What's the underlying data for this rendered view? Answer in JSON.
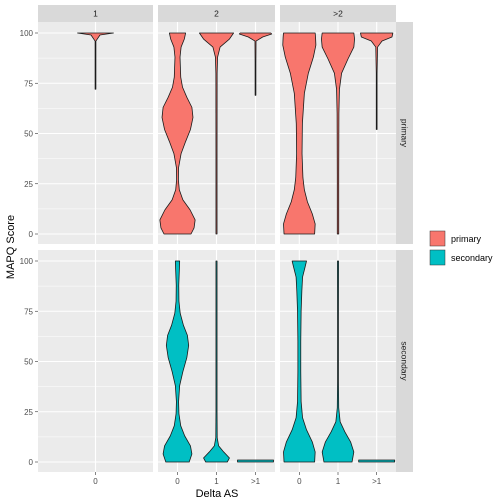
{
  "chart_data": {
    "type": "violin",
    "xlabel": "Delta AS",
    "ylabel": "MAPQ Score",
    "ylim": [
      0,
      100
    ],
    "yticks": [
      0,
      25,
      50,
      75,
      100
    ],
    "col_facets": [
      "1",
      "2",
      ">2"
    ],
    "row_facets": [
      "primary",
      "secondary"
    ],
    "x_categories": {
      "1": [
        "0"
      ],
      "2": [
        "0",
        "1",
        ">1"
      ],
      ">2": [
        "0",
        "1",
        ">1"
      ]
    },
    "legend": {
      "entries": [
        {
          "label": "primary",
          "color": "#F8766D"
        },
        {
          "label": "secondary",
          "color": "#00BFC4"
        }
      ],
      "placement": "right"
    },
    "colors": {
      "primary": "#F8766D",
      "secondary": "#00BFC4",
      "panel_bg": "#EBEBEB",
      "strip_bg": "#D9D9D9",
      "grid": "#FFFFFF"
    },
    "violins": [
      {
        "col": "1",
        "row": "primary",
        "x": "0",
        "group": "primary",
        "min": 72,
        "max": 100,
        "density": [
          [
            72,
            0.004
          ],
          [
            85,
            0.004
          ],
          [
            96,
            0.006
          ],
          [
            99,
            0.25
          ],
          [
            100,
            1.0
          ]
        ]
      },
      {
        "col": "2",
        "row": "primary",
        "x": "0",
        "group": "primary",
        "min": 0,
        "max": 100,
        "density": [
          [
            0,
            0.75
          ],
          [
            3,
            0.92
          ],
          [
            7,
            0.98
          ],
          [
            12,
            0.7
          ],
          [
            17,
            0.3
          ],
          [
            22,
            0.1
          ],
          [
            27,
            0.05
          ],
          [
            33,
            0.06
          ],
          [
            40,
            0.2
          ],
          [
            46,
            0.45
          ],
          [
            52,
            0.72
          ],
          [
            58,
            0.86
          ],
          [
            63,
            0.8
          ],
          [
            68,
            0.52
          ],
          [
            73,
            0.28
          ],
          [
            78,
            0.18
          ],
          [
            83,
            0.16
          ],
          [
            88,
            0.14
          ],
          [
            93,
            0.2
          ],
          [
            97,
            0.38
          ],
          [
            100,
            0.45
          ]
        ]
      },
      {
        "col": "2",
        "row": "primary",
        "x": "1",
        "group": "primary",
        "min": 0,
        "max": 100,
        "density": [
          [
            0,
            0.03
          ],
          [
            40,
            0.03
          ],
          [
            80,
            0.035
          ],
          [
            88,
            0.06
          ],
          [
            93,
            0.2
          ],
          [
            97,
            0.72
          ],
          [
            100,
            0.95
          ]
        ]
      },
      {
        "col": "2",
        "row": "primary",
        "x": ">1",
        "group": "primary",
        "min": 69,
        "max": 100,
        "density": [
          [
            69,
            0.015
          ],
          [
            85,
            0.015
          ],
          [
            96,
            0.03
          ],
          [
            98,
            0.4
          ],
          [
            99.5,
            0.9
          ],
          [
            100,
            0.85
          ]
        ]
      },
      {
        "col": ">2",
        "row": "primary",
        "x": "0",
        "group": "primary",
        "min": 0,
        "max": 100,
        "density": [
          [
            0,
            0.85
          ],
          [
            5,
            0.88
          ],
          [
            10,
            0.72
          ],
          [
            16,
            0.45
          ],
          [
            22,
            0.28
          ],
          [
            28,
            0.2
          ],
          [
            40,
            0.15
          ],
          [
            55,
            0.17
          ],
          [
            70,
            0.28
          ],
          [
            80,
            0.5
          ],
          [
            88,
            0.78
          ],
          [
            94,
            0.92
          ],
          [
            98,
            0.9
          ],
          [
            100,
            0.88
          ]
        ]
      },
      {
        "col": ">2",
        "row": "primary",
        "x": "1",
        "group": "primary",
        "min": 0,
        "max": 100,
        "density": [
          [
            0,
            0.04
          ],
          [
            30,
            0.04
          ],
          [
            60,
            0.05
          ],
          [
            72,
            0.08
          ],
          [
            80,
            0.2
          ],
          [
            87,
            0.55
          ],
          [
            93,
            0.88
          ],
          [
            97,
            0.92
          ],
          [
            100,
            0.88
          ]
        ]
      },
      {
        "col": ">2",
        "row": "primary",
        "x": ">1",
        "group": "primary",
        "min": 52,
        "max": 100,
        "density": [
          [
            52,
            0.015
          ],
          [
            80,
            0.02
          ],
          [
            93,
            0.05
          ],
          [
            96,
            0.3
          ],
          [
            98,
            0.85
          ],
          [
            100,
            0.9
          ]
        ]
      },
      {
        "col": "2",
        "row": "secondary",
        "x": "0",
        "group": "secondary",
        "min": 0,
        "max": 100,
        "density": [
          [
            0,
            0.65
          ],
          [
            4,
            0.8
          ],
          [
            8,
            0.72
          ],
          [
            13,
            0.4
          ],
          [
            18,
            0.18
          ],
          [
            24,
            0.08
          ],
          [
            30,
            0.06
          ],
          [
            38,
            0.12
          ],
          [
            45,
            0.3
          ],
          [
            52,
            0.52
          ],
          [
            58,
            0.62
          ],
          [
            63,
            0.55
          ],
          [
            68,
            0.33
          ],
          [
            74,
            0.15
          ],
          [
            80,
            0.08
          ],
          [
            88,
            0.07
          ],
          [
            95,
            0.1
          ],
          [
            100,
            0.12
          ]
        ]
      },
      {
        "col": "2",
        "row": "secondary",
        "x": "1",
        "group": "secondary",
        "min": 0,
        "max": 100,
        "density": [
          [
            0,
            0.6
          ],
          [
            2,
            0.72
          ],
          [
            5,
            0.4
          ],
          [
            8,
            0.12
          ],
          [
            12,
            0.04
          ],
          [
            25,
            0.03
          ],
          [
            60,
            0.03
          ],
          [
            100,
            0.03
          ]
        ]
      },
      {
        "col": "2",
        "row": "secondary",
        "x": ">1",
        "group": "secondary",
        "min": 0,
        "max": 1,
        "density": [
          [
            0,
            1.0
          ],
          [
            1,
            1.0
          ]
        ]
      },
      {
        "col": ">2",
        "row": "secondary",
        "x": "0",
        "group": "secondary",
        "min": 0,
        "max": 100,
        "density": [
          [
            0,
            0.85
          ],
          [
            5,
            0.88
          ],
          [
            10,
            0.72
          ],
          [
            16,
            0.4
          ],
          [
            22,
            0.18
          ],
          [
            30,
            0.1
          ],
          [
            45,
            0.08
          ],
          [
            60,
            0.08
          ],
          [
            75,
            0.1
          ],
          [
            85,
            0.14
          ],
          [
            92,
            0.18
          ],
          [
            97,
            0.32
          ],
          [
            100,
            0.4
          ]
        ]
      },
      {
        "col": ">2",
        "row": "secondary",
        "x": "1",
        "group": "secondary",
        "min": 0,
        "max": 100,
        "density": [
          [
            0,
            0.78
          ],
          [
            5,
            0.88
          ],
          [
            10,
            0.7
          ],
          [
            15,
            0.38
          ],
          [
            20,
            0.12
          ],
          [
            27,
            0.04
          ],
          [
            40,
            0.025
          ],
          [
            70,
            0.025
          ],
          [
            95,
            0.03
          ],
          [
            100,
            0.03
          ]
        ]
      },
      {
        "col": ">2",
        "row": "secondary",
        "x": ">1",
        "group": "secondary",
        "min": 0,
        "max": 1,
        "density": [
          [
            0,
            1.0
          ],
          [
            1,
            1.0
          ]
        ]
      }
    ]
  }
}
